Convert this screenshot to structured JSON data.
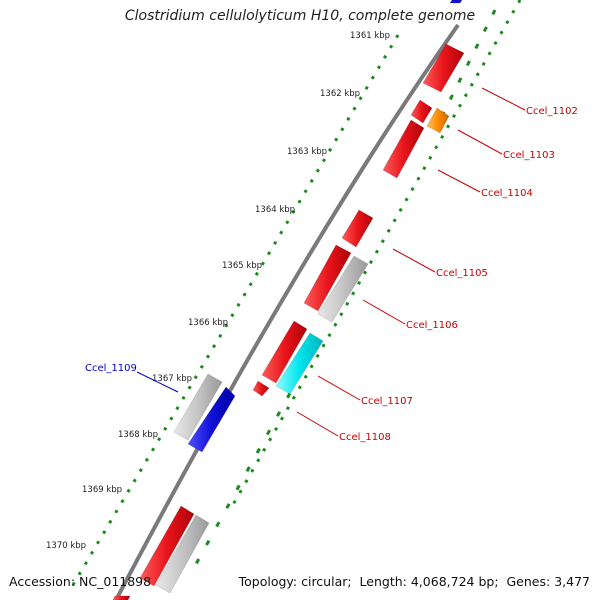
{
  "title": "Clostridium cellulolyticum H10, complete genome",
  "footer": {
    "accession_label": "Accession:",
    "accession": "NC_011898",
    "topology_label": "Topology:",
    "topology": "circular",
    "length_label": "Length:",
    "length": "4,068,724 bp",
    "genes_label": "Genes:",
    "genes": "3,477"
  },
  "colors": {
    "forward_strand": "#e8151b",
    "reverse_red": "#e8151b",
    "grey_feature": "#c8c8c8",
    "cyan_feature": "#00e5ee",
    "blue_feature": "#1010d8",
    "orange_feature": "#ff8c00",
    "backbone": "#777777",
    "ruler_dots": "#1d8a1d",
    "label_red": "#cc0000",
    "label_blue": "#0000cc"
  },
  "ticks": [
    "1361 kbp",
    "1362 kbp",
    "1363 kbp",
    "1364 kbp",
    "1365 kbp",
    "1366 kbp",
    "1367 kbp",
    "1368 kbp",
    "1369 kbp",
    "1370 kbp"
  ],
  "gene_labels": [
    {
      "name": "Ccel_1102",
      "color": "red"
    },
    {
      "name": "Ccel_1103",
      "color": "red"
    },
    {
      "name": "Ccel_1104",
      "color": "red"
    },
    {
      "name": "Ccel_1105",
      "color": "red"
    },
    {
      "name": "Ccel_1106",
      "color": "red"
    },
    {
      "name": "Ccel_1107",
      "color": "red"
    },
    {
      "name": "Ccel_1108",
      "color": "red"
    },
    {
      "name": "Ccel_1109",
      "color": "blue"
    }
  ]
}
